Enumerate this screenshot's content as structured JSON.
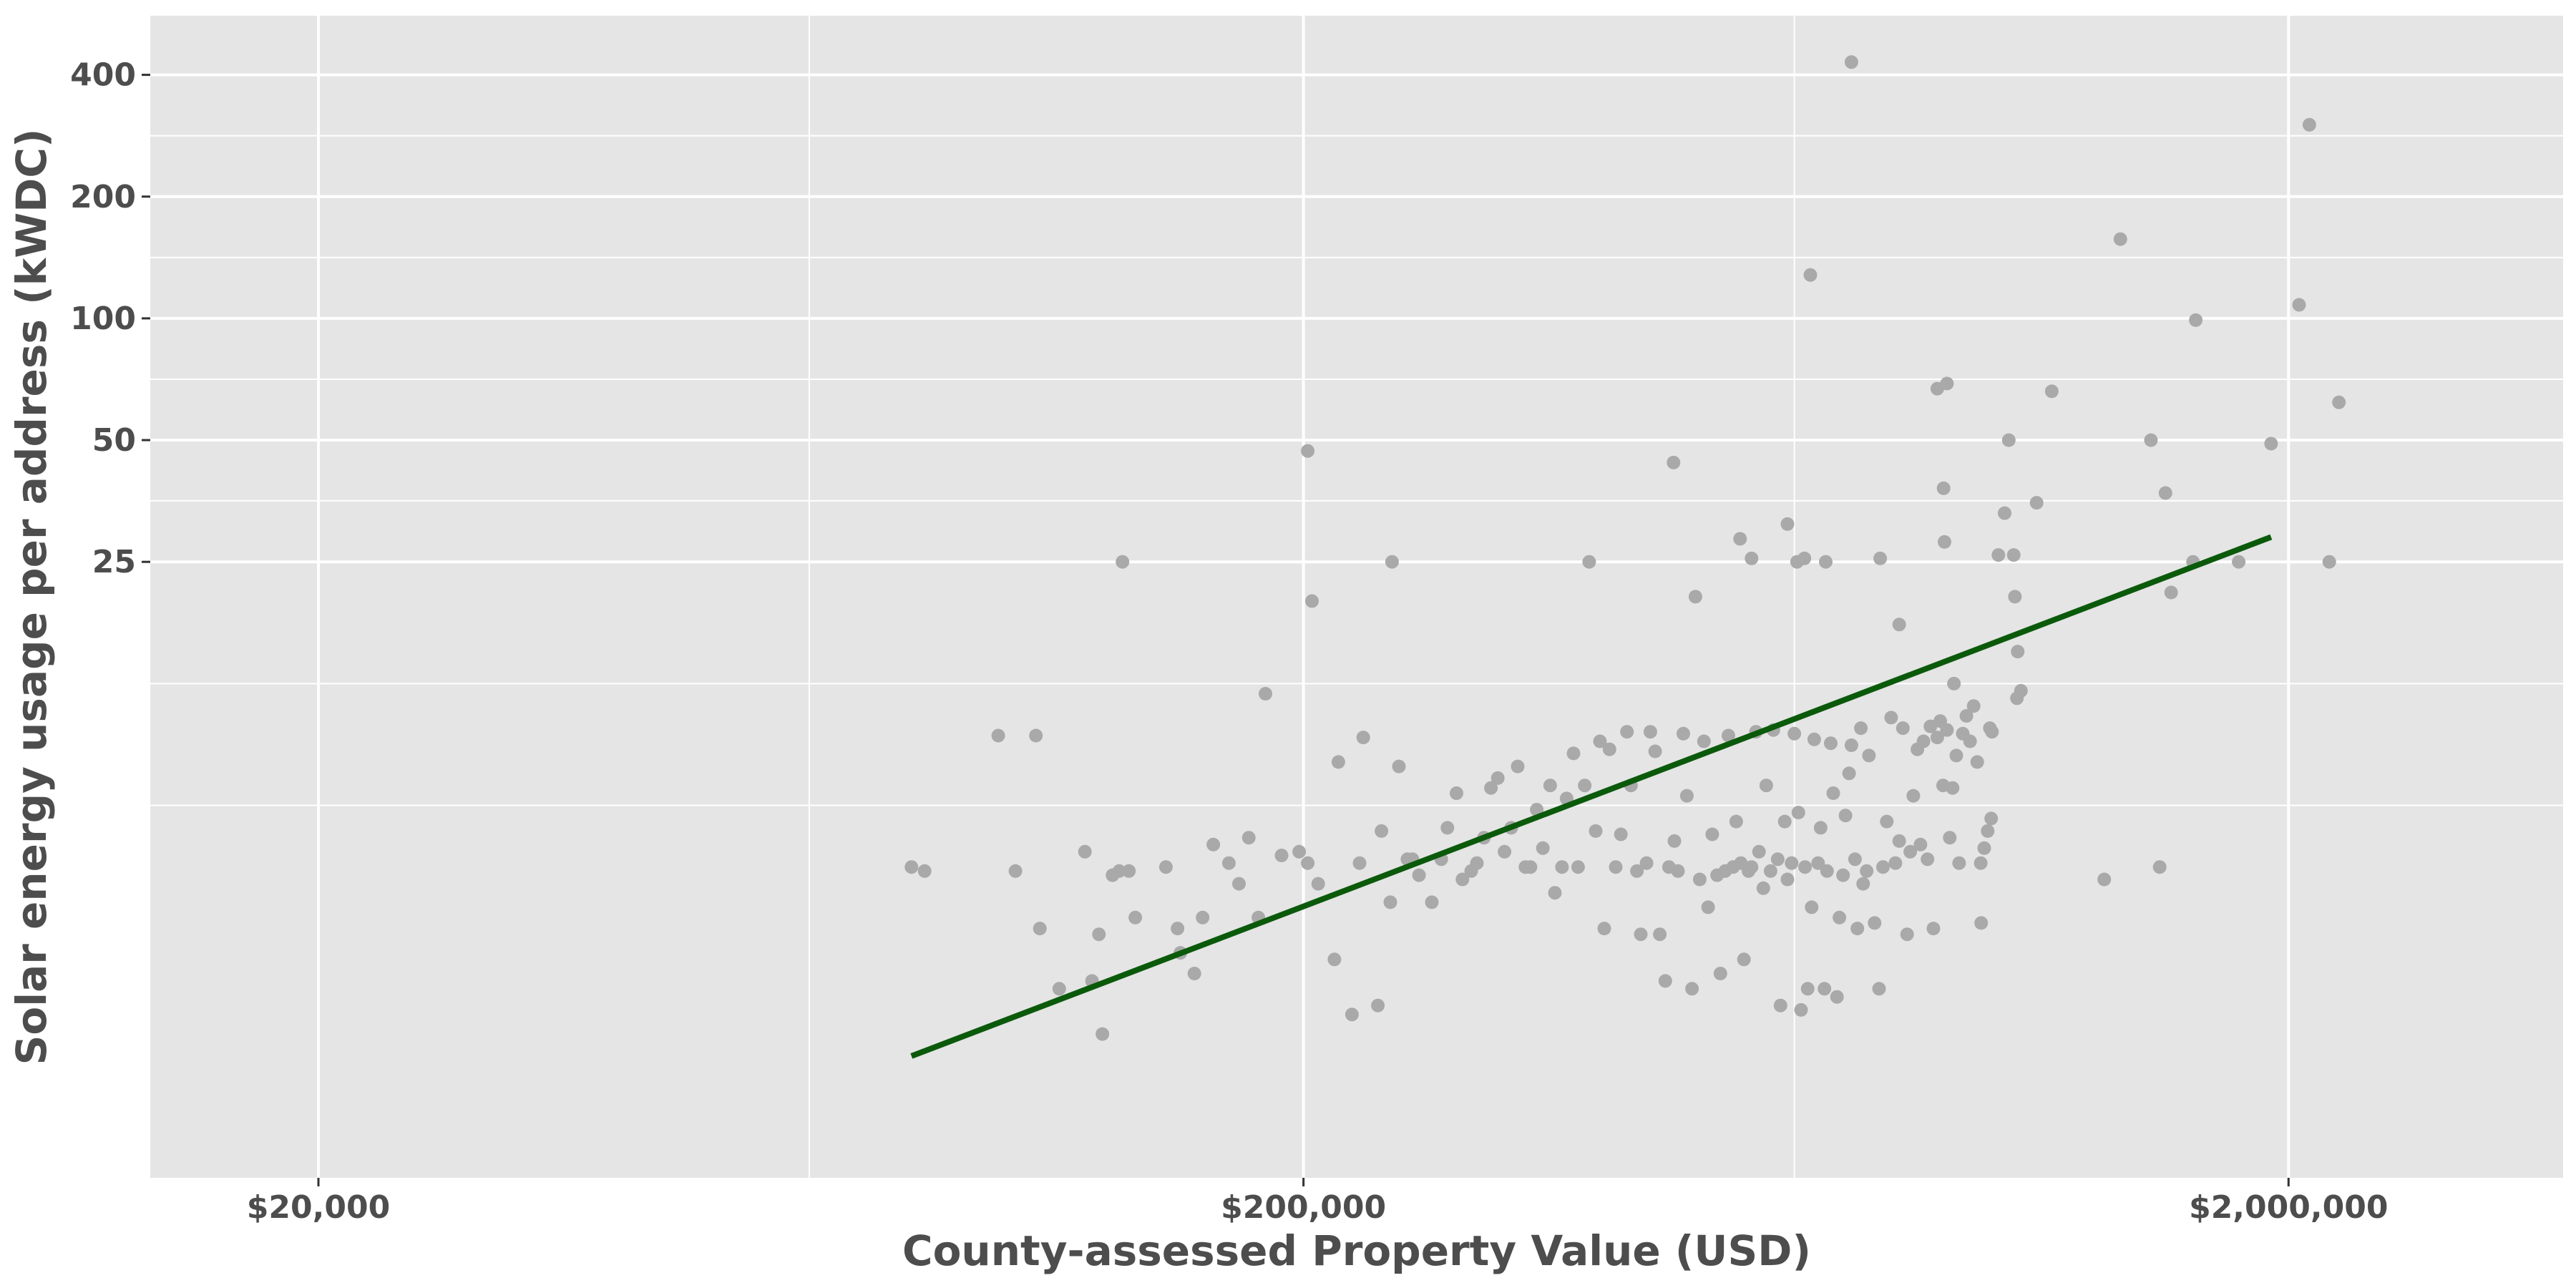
{
  "chart_data": {
    "type": "scatter",
    "title": "",
    "xlabel": "County-assessed Property Value (USD)",
    "ylabel": "Solar energy usage per address (kWDC)",
    "x_scale": "log10",
    "y_scale": "log2",
    "xlim": [
      13500,
      3800000
    ],
    "ylim": [
      0.75,
      560
    ],
    "x_ticks": [
      {
        "value": 20000,
        "label": "$20,000"
      },
      {
        "value": 200000,
        "label": "$200,000"
      },
      {
        "value": 2000000,
        "label": "$2,000,000"
      }
    ],
    "x_minor_ticks": [
      63000,
      630000
    ],
    "y_ticks": [
      {
        "value": 25,
        "label": "25"
      },
      {
        "value": 50,
        "label": "50"
      },
      {
        "value": 100,
        "label": "100"
      },
      {
        "value": 200,
        "label": "200"
      },
      {
        "value": 400,
        "label": "400"
      }
    ],
    "y_minor_ticks": [
      12.5,
      6.25,
      35.4,
      70.7,
      141.4,
      282.8
    ],
    "grid": true,
    "background": "#e5e5e5",
    "grid_color": "#ffffff",
    "point_color": "#a9a9a9",
    "line_color": "#0b5a0b",
    "trend_line": {
      "x": [
        80000,
        1920000
      ],
      "y": [
        1.5,
        28.8
      ]
    },
    "points": [
      [
        80000,
        4.4
      ],
      [
        82500,
        4.3
      ],
      [
        98000,
        9.3
      ],
      [
        102000,
        4.3
      ],
      [
        107000,
        9.3
      ],
      [
        108000,
        3.1
      ],
      [
        113000,
        2.2
      ],
      [
        120000,
        4.8
      ],
      [
        124000,
        3.0
      ],
      [
        125000,
        1.7
      ],
      [
        122000,
        2.3
      ],
      [
        128000,
        4.2
      ],
      [
        130000,
        4.3
      ],
      [
        131000,
        25
      ],
      [
        133000,
        4.3
      ],
      [
        135000,
        3.3
      ],
      [
        145000,
        4.4
      ],
      [
        149000,
        3.1
      ],
      [
        150000,
        2.7
      ],
      [
        155000,
        2.4
      ],
      [
        158000,
        3.3
      ],
      [
        162000,
        5.0
      ],
      [
        168000,
        4.5
      ],
      [
        172000,
        4.0
      ],
      [
        176000,
        5.2
      ],
      [
        180000,
        3.3
      ],
      [
        183000,
        11.8
      ],
      [
        190000,
        4.7
      ],
      [
        198000,
        4.8
      ],
      [
        202000,
        4.5
      ],
      [
        207000,
        4.0
      ],
      [
        215000,
        2.6
      ],
      [
        217000,
        8.0
      ],
      [
        224000,
        1.9
      ],
      [
        228000,
        4.5
      ],
      [
        230000,
        9.2
      ],
      [
        238000,
        2.0
      ],
      [
        240000,
        5.4
      ],
      [
        245000,
        3.6
      ],
      [
        250000,
        7.8
      ],
      [
        255000,
        4.6
      ],
      [
        258000,
        4.6
      ],
      [
        262000,
        4.2
      ],
      [
        270000,
        3.6
      ],
      [
        276000,
        4.6
      ],
      [
        280000,
        5.5
      ],
      [
        286000,
        6.7
      ],
      [
        290000,
        4.1
      ],
      [
        296000,
        4.3
      ],
      [
        300000,
        4.5
      ],
      [
        305000,
        5.2
      ],
      [
        310000,
        6.9
      ],
      [
        315000,
        7.3
      ],
      [
        320000,
        4.8
      ],
      [
        325000,
        5.5
      ],
      [
        330000,
        7.8
      ],
      [
        336000,
        4.4
      ],
      [
        340000,
        4.4
      ],
      [
        345000,
        6.1
      ],
      [
        350000,
        4.9
      ],
      [
        356000,
        7.0
      ],
      [
        360000,
        3.8
      ],
      [
        366000,
        4.4
      ],
      [
        370000,
        6.5
      ],
      [
        376000,
        8.4
      ],
      [
        380000,
        4.4
      ],
      [
        386000,
        7.0
      ],
      [
        390000,
        25
      ],
      [
        396000,
        5.4
      ],
      [
        400000,
        9.0
      ],
      [
        404000,
        3.1
      ],
      [
        409000,
        8.6
      ],
      [
        415000,
        4.4
      ],
      [
        420000,
        5.3
      ],
      [
        426000,
        9.5
      ],
      [
        430000,
        7.0
      ],
      [
        436000,
        4.3
      ],
      [
        440000,
        3.0
      ],
      [
        446000,
        4.5
      ],
      [
        450000,
        9.5
      ],
      [
        455000,
        8.5
      ],
      [
        460000,
        3.0
      ],
      [
        466000,
        2.3
      ],
      [
        470000,
        4.4
      ],
      [
        476000,
        5.1
      ],
      [
        480000,
        4.3
      ],
      [
        486000,
        9.4
      ],
      [
        490000,
        6.6
      ],
      [
        496000,
        2.2
      ],
      [
        500000,
        20.5
      ],
      [
        505000,
        4.1
      ],
      [
        510000,
        9.0
      ],
      [
        515000,
        3.5
      ],
      [
        520000,
        5.3
      ],
      [
        526000,
        4.2
      ],
      [
        530000,
        2.4
      ],
      [
        536000,
        4.3
      ],
      [
        540000,
        9.3
      ],
      [
        546000,
        4.4
      ],
      [
        550000,
        5.7
      ],
      [
        556000,
        4.5
      ],
      [
        560000,
        2.6
      ],
      [
        566000,
        4.3
      ],
      [
        570000,
        4.4
      ],
      [
        576000,
        9.5
      ],
      [
        580000,
        4.8
      ],
      [
        586000,
        3.9
      ],
      [
        590000,
        7.0
      ],
      [
        596000,
        4.3
      ],
      [
        600000,
        9.6
      ],
      [
        606000,
        4.6
      ],
      [
        610000,
        2.0
      ],
      [
        616000,
        5.7
      ],
      [
        620000,
        4.1
      ],
      [
        626000,
        4.5
      ],
      [
        630000,
        9.4
      ],
      [
        636000,
        6.0
      ],
      [
        640000,
        1.95
      ],
      [
        646000,
        4.4
      ],
      [
        650000,
        2.2
      ],
      [
        656000,
        3.5
      ],
      [
        660000,
        9.1
      ],
      [
        666000,
        4.5
      ],
      [
        670000,
        5.5
      ],
      [
        676000,
        2.2
      ],
      [
        680000,
        4.3
      ],
      [
        686000,
        8.9
      ],
      [
        690000,
        6.7
      ],
      [
        696000,
        2.1
      ],
      [
        700000,
        3.3
      ],
      [
        706000,
        4.2
      ],
      [
        710000,
        5.9
      ],
      [
        716000,
        7.5
      ],
      [
        720000,
        8.8
      ],
      [
        726000,
        4.6
      ],
      [
        730000,
        3.1
      ],
      [
        736000,
        9.7
      ],
      [
        740000,
        4.0
      ],
      [
        746000,
        4.3
      ],
      [
        750000,
        8.3
      ],
      [
        760000,
        3.2
      ],
      [
        768000,
        2.2
      ],
      [
        775000,
        4.4
      ],
      [
        782000,
        5.7
      ],
      [
        790000,
        10.3
      ],
      [
        798000,
        4.5
      ],
      [
        805000,
        5.1
      ],
      [
        812000,
        9.7
      ],
      [
        820000,
        3.0
      ],
      [
        826000,
        4.8
      ],
      [
        832000,
        6.6
      ],
      [
        840000,
        8.6
      ],
      [
        846000,
        5.0
      ],
      [
        852000,
        9.0
      ],
      [
        860000,
        4.6
      ],
      [
        866000,
        9.8
      ],
      [
        872000,
        3.1
      ],
      [
        880000,
        9.2
      ],
      [
        886000,
        10.1
      ],
      [
        892000,
        7.0
      ],
      [
        900000,
        9.6
      ],
      [
        906000,
        5.2
      ],
      [
        912000,
        6.9
      ],
      [
        920000,
        8.3
      ],
      [
        926000,
        4.5
      ],
      [
        934000,
        9.4
      ],
      [
        942000,
        10.4
      ],
      [
        950000,
        9.0
      ],
      [
        958000,
        11.0
      ],
      [
        966000,
        8.0
      ],
      [
        974000,
        4.5
      ],
      [
        982000,
        4.9
      ],
      [
        990000,
        5.4
      ],
      [
        998000,
        5.8
      ],
      [
        202000,
        47
      ],
      [
        204000,
        20
      ],
      [
        475000,
        44
      ],
      [
        555000,
        28.5
      ],
      [
        570000,
        25.5
      ],
      [
        620000,
        31
      ],
      [
        634000,
        25
      ],
      [
        645000,
        25.5
      ],
      [
        654000,
        128
      ],
      [
        678000,
        25
      ],
      [
        720000,
        430
      ],
      [
        770000,
        25.5
      ],
      [
        805000,
        17.5
      ],
      [
        880000,
        67
      ],
      [
        893000,
        38
      ],
      [
        895000,
        28
      ],
      [
        900000,
        69
      ],
      [
        915000,
        12.5
      ],
      [
        975000,
        3.2
      ],
      [
        995000,
        9.7
      ],
      [
        1000000,
        9.5
      ],
      [
        1015000,
        26
      ],
      [
        1030000,
        33
      ],
      [
        1040000,
        50
      ],
      [
        1052000,
        26
      ],
      [
        1055000,
        20.5
      ],
      [
        1060000,
        11.5
      ],
      [
        1062000,
        15
      ],
      [
        1070000,
        12
      ],
      [
        1110000,
        35
      ],
      [
        1150000,
        66
      ],
      [
        1300000,
        4.1
      ],
      [
        1350000,
        157
      ],
      [
        1450000,
        50
      ],
      [
        1480000,
        4.4
      ],
      [
        1500000,
        37
      ],
      [
        1520000,
        21
      ],
      [
        1600000,
        25
      ],
      [
        1610000,
        99
      ],
      [
        1780000,
        25
      ],
      [
        1920000,
        49
      ],
      [
        2050000,
        108
      ],
      [
        2100000,
        301
      ],
      [
        2200000,
        25
      ],
      [
        2250000,
        62
      ],
      [
        246000,
        25
      ]
    ]
  }
}
